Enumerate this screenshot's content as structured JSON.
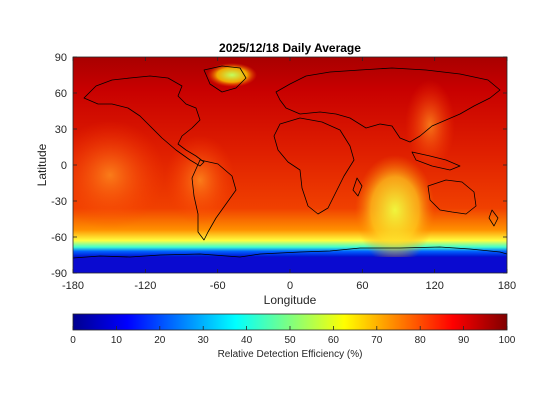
{
  "chart_data": {
    "type": "heatmap",
    "title": "2025/12/18 Daily Average",
    "xlabel": "Longitude",
    "ylabel": "Latitude",
    "xlim": [
      -180,
      180
    ],
    "ylim": [
      -90,
      90
    ],
    "x_ticks": [
      -180,
      -120,
      -60,
      0,
      60,
      120,
      180
    ],
    "y_ticks": [
      90,
      60,
      30,
      0,
      -30,
      -60,
      -90
    ],
    "colormap": "jet",
    "colorbar": {
      "label": "Relative Detection Efficiency (%)",
      "range": [
        0,
        100
      ],
      "ticks": [
        0,
        10,
        20,
        30,
        40,
        50,
        60,
        70,
        80,
        90,
        100
      ],
      "placement": "bottom"
    },
    "features": [
      {
        "region": "Antarctica / far south (< -70 lat)",
        "value": 5
      },
      {
        "region": "Southern ocean band (-60 to -70 lat)",
        "value": 35
      },
      {
        "region": "Southern Indian Ocean swath (40 to 100 lon)",
        "value": 65
      },
      {
        "region": "Greenland (high northern lat)",
        "value": 55
      },
      {
        "region": "Eastern Pacific / South America tropics",
        "value": 85
      },
      {
        "region": "Northern mid-latitudes",
        "value": 95
      }
    ]
  }
}
